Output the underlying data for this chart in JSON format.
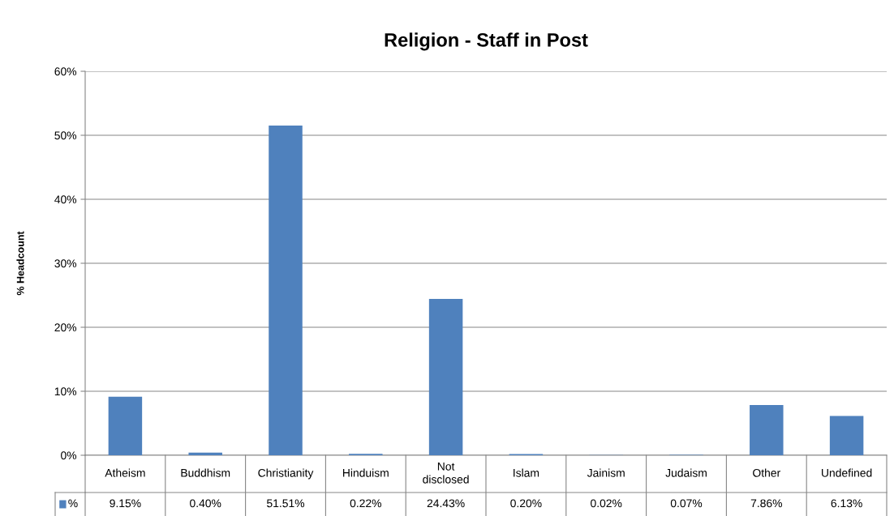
{
  "chart_data": {
    "type": "bar",
    "title": "Religion - Staff in Post",
    "ylabel": "% Headcount",
    "categories": [
      "Atheism",
      "Buddhism",
      "Christianity",
      "Hinduism",
      "Not disclosed",
      "Islam",
      "Jainism",
      "Judaism",
      "Other",
      "Undefined"
    ],
    "series": [
      {
        "name": "%",
        "color": "#4f81bd",
        "values": [
          9.15,
          0.4,
          51.51,
          0.22,
          24.43,
          0.2,
          0.02,
          0.07,
          7.86,
          6.13
        ],
        "value_labels": [
          "9.15%",
          "0.40%",
          "51.51%",
          "0.22%",
          "24.43%",
          "0.20%",
          "0.02%",
          "0.07%",
          "7.86%",
          "6.13%"
        ]
      }
    ],
    "ylim": [
      0,
      60
    ],
    "yticks": [
      {
        "value": 0,
        "label": "0%"
      },
      {
        "value": 10,
        "label": "10%"
      },
      {
        "value": 20,
        "label": "20%"
      },
      {
        "value": 30,
        "label": "30%"
      },
      {
        "value": 40,
        "label": "40%"
      },
      {
        "value": 50,
        "label": "50%"
      },
      {
        "value": 60,
        "label": "60%"
      }
    ],
    "grid": "y"
  }
}
